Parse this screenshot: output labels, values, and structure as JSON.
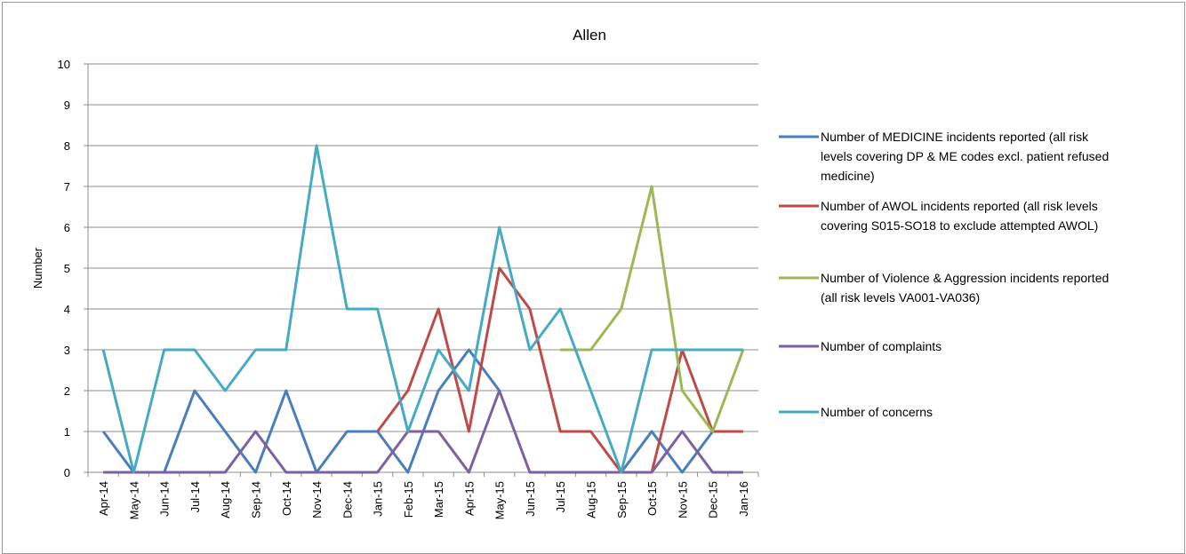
{
  "chart_data": {
    "type": "line",
    "title": "Allen",
    "ylabel": "Number",
    "xlabel": "",
    "ylim": [
      0,
      10
    ],
    "yticks": [
      "0",
      "1",
      "2",
      "3",
      "4",
      "5",
      "6",
      "7",
      "8",
      "9",
      "10"
    ],
    "grid": true,
    "legend_position": "right",
    "categories": [
      "Apr-14",
      "May-14",
      "Jun-14",
      "Jul-14",
      "Aug-14",
      "Sep-14",
      "Oct-14",
      "Nov-14",
      "Dec-14",
      "Jan-15",
      "Feb-15",
      "Mar-15",
      "Apr-15",
      "May-15",
      "Jun-15",
      "Jul-15",
      "Aug-15",
      "Sep-15",
      "Oct-15",
      "Nov-15",
      "Dec-15",
      "Jan-16"
    ],
    "series": [
      {
        "name": "Number of MEDICINE incidents reported (all risk levels covering DP & ME codes excl. patient refused medicine)",
        "legend_lines": [
          "Number of MEDICINE incidents reported (all risk",
          "levels covering DP & ME codes excl. patient refused",
          "medicine)"
        ],
        "color": "#4a7ebb",
        "values": [
          1,
          0,
          0,
          2,
          1,
          0,
          2,
          0,
          1,
          1,
          0,
          2,
          3,
          2,
          null,
          null,
          null,
          0,
          1,
          0,
          1,
          null
        ]
      },
      {
        "name": "Number of AWOL incidents reported (all risk levels covering S015-SO18 to exclude attempted AWOL)",
        "legend_lines": [
          "Number of AWOL incidents reported (all risk levels",
          "covering S015-SO18 to exclude attempted AWOL)"
        ],
        "color": "#be4b48",
        "values": [
          null,
          null,
          null,
          null,
          null,
          null,
          null,
          null,
          null,
          1,
          2,
          4,
          1,
          5,
          4,
          1,
          1,
          0,
          0,
          3,
          1,
          1
        ]
      },
      {
        "name": "Number of Violence & Aggression incidents reported (all risk levels VA001-VA036)",
        "legend_lines": [
          "Number of Violence & Aggression incidents reported",
          "(all risk levels VA001-VA036)"
        ],
        "color": "#98b954",
        "values": [
          null,
          null,
          null,
          null,
          null,
          null,
          null,
          null,
          null,
          null,
          null,
          null,
          null,
          null,
          null,
          3,
          3,
          4,
          7,
          2,
          1,
          3
        ]
      },
      {
        "name": "Number of complaints",
        "legend_lines": [
          "Number of complaints"
        ],
        "color": "#7d60a0",
        "values": [
          0,
          0,
          0,
          0,
          0,
          1,
          0,
          0,
          0,
          0,
          1,
          1,
          0,
          2,
          0,
          0,
          0,
          0,
          0,
          1,
          0,
          0
        ]
      },
      {
        "name": "Number of concerns",
        "legend_lines": [
          "Number of concerns"
        ],
        "color": "#46aac5",
        "values": [
          3,
          0,
          3,
          3,
          2,
          3,
          3,
          8,
          4,
          4,
          1,
          3,
          2,
          6,
          3,
          4,
          2,
          0,
          3,
          3,
          3,
          3
        ]
      }
    ]
  }
}
